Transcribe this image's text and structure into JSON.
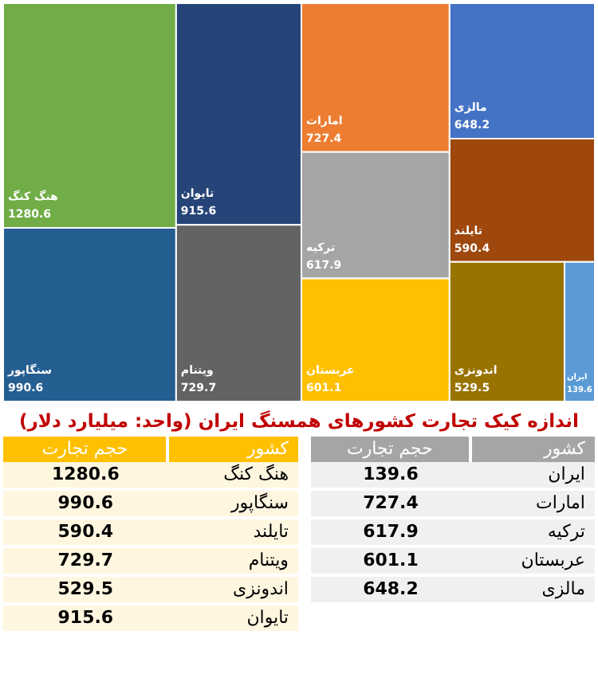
{
  "chart_data": [
    {
      "type": "other",
      "title": "اندازه کیک تجارت کشورهای همسنگ ایران (واحد: میلیارد دلار)",
      "categories": [
        "هنگ کنگ",
        "سنگاپور",
        "تایوان",
        "ویتنام",
        "امارات",
        "ترکیه",
        "عربستان",
        "مالزی",
        "تایلند",
        "اندونزی",
        "ایران"
      ],
      "values": [
        1280.6,
        990.6,
        915.6,
        729.7,
        727.4,
        617.9,
        601.1,
        648.2,
        590.4,
        529.5,
        139.6
      ],
      "colors": [
        "#70ad47",
        "#255e91",
        "#264478",
        "#636363",
        "#ed7d31",
        "#a5a5a5",
        "#ffc000",
        "#4472c4",
        "#9e480e",
        "#997300",
        "#5b9bd5"
      ],
      "data_labels": true
    },
    {
      "type": "other",
      "xlabel": "کشور",
      "ylabel": "حجم تجارت",
      "categories": [
        "هنگ کنگ",
        "سنگاپور",
        "تایلند",
        "ویتنام",
        "اندونزی",
        "تایوان"
      ],
      "values": [
        1280.6,
        990.6,
        590.4,
        729.7,
        529.5,
        915.6
      ],
      "data_labels": true
    },
    {
      "type": "other",
      "xlabel": "کشور",
      "ylabel": "حجم تجارت",
      "categories": [
        "ایران",
        "امارات",
        "ترکیه",
        "عربستان",
        "مالزی"
      ],
      "values": [
        139.6,
        727.4,
        617.9,
        601.1,
        648.2
      ],
      "data_labels": true
    }
  ]
}
